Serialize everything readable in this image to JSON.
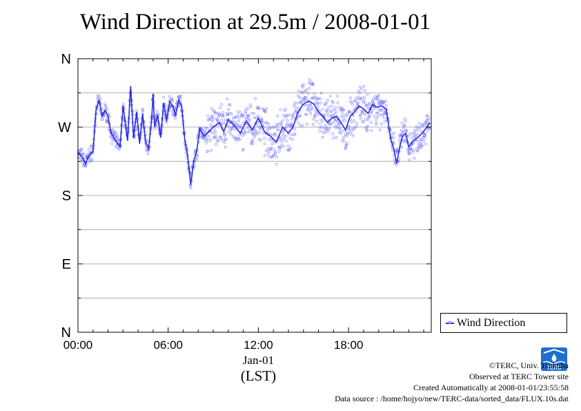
{
  "chart_data": {
    "type": "scatter",
    "title": "Wind Direction at 29.5m / 2008-01-01",
    "y_ticks": [
      "N",
      "W",
      "S",
      "E",
      "N"
    ],
    "y_tick_degrees": [
      360,
      270,
      180,
      90,
      0
    ],
    "ylim": [
      0,
      360
    ],
    "x_ticks": [
      "00:00",
      "06:00",
      "12:00",
      "18:00"
    ],
    "x_tick_hours": [
      0,
      6,
      12,
      18
    ],
    "xlim": [
      0,
      23.5
    ],
    "x_date_label": "Jan-01",
    "x_unit_label": "(LST)",
    "grid": true,
    "legend": {
      "position": "bottom-right",
      "entries": [
        "Wind Direction"
      ]
    },
    "series": [
      {
        "name": "Wind Direction",
        "color": "#2a2ae0",
        "point_color": "#6060ff",
        "x_hours": [
          0,
          0.3,
          0.5,
          0.7,
          1.0,
          1.2,
          1.4,
          1.6,
          1.8,
          2.0,
          2.2,
          2.5,
          2.8,
          3.0,
          3.3,
          3.5,
          3.7,
          3.9,
          4.1,
          4.3,
          4.5,
          4.7,
          4.9,
          5.0,
          5.1,
          5.3,
          5.5,
          5.7,
          5.9,
          6.1,
          6.3,
          6.5,
          6.7,
          6.9,
          7.1,
          7.3,
          7.5,
          7.7,
          7.9,
          8.1,
          8.4,
          8.7,
          9.0,
          9.4,
          9.7,
          10.0,
          10.4,
          10.8,
          11.2,
          11.6,
          12.0,
          12.4,
          12.8,
          13.2,
          13.6,
          14.0,
          14.3,
          14.6,
          14.9,
          15.1,
          15.4,
          15.7,
          16.0,
          16.3,
          16.6,
          16.9,
          17.2,
          17.5,
          17.8,
          18.1,
          18.4,
          18.7,
          19.0,
          19.3,
          19.6,
          19.9,
          20.2,
          20.5,
          20.8,
          21.0,
          21.2,
          21.4,
          21.6,
          21.8,
          22.0,
          22.3,
          22.6,
          22.9,
          23.2,
          23.4
        ],
        "y_deg": [
          236,
          230,
          222,
          232,
          238,
          292,
          306,
          284,
          292,
          284,
          262,
          252,
          244,
          298,
          252,
          324,
          256,
          290,
          248,
          288,
          250,
          242,
          280,
          314,
          270,
          286,
          256,
          302,
          278,
          304,
          298,
          286,
          306,
          298,
          254,
          232,
          194,
          226,
          238,
          268,
          258,
          264,
          270,
          276,
          264,
          280,
          272,
          262,
          278,
          266,
          282,
          264,
          258,
          250,
          270,
          262,
          270,
          288,
          298,
          302,
          304,
          300,
          290,
          284,
          276,
          282,
          284,
          276,
          266,
          284,
          290,
          298,
          294,
          288,
          300,
          296,
          298,
          294,
          254,
          242,
          222,
          244,
          258,
          262,
          244,
          252,
          256,
          262,
          270,
          276
        ]
      }
    ]
  },
  "legend_label": "Wind Direction",
  "credits": {
    "line1": "©TERC, Univ. Tsukuba",
    "line2": "Observed at TERC Tower site",
    "line3": "Created Automatically at 2008-01-01/23:55:58",
    "line4": "Data source : /home/hojyo/new/TERC-data/sorted_data/FLUX.10s.dat"
  },
  "logo": {
    "text": "TERC",
    "color": "#1d6fd1"
  }
}
